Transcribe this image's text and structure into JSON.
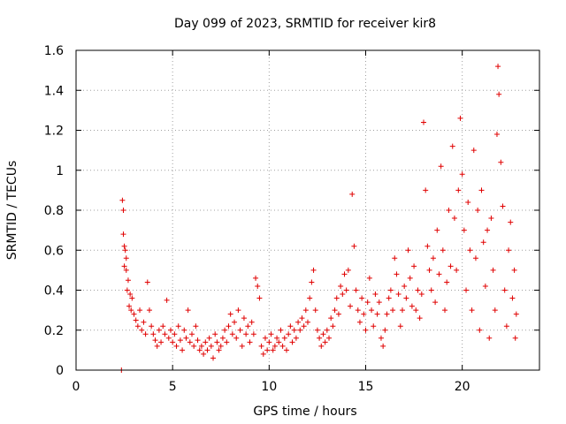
{
  "chart_data": {
    "type": "scatter",
    "title": "Day 099 of 2023, SRMTID for receiver kir8",
    "xlabel": "GPS time / hours",
    "ylabel": "SRMTID / TECUs",
    "xlim": [
      0,
      24
    ],
    "ylim": [
      0,
      1.6
    ],
    "xticks": [
      0,
      5,
      10,
      15,
      20
    ],
    "xtick_labels": [
      "0",
      "5",
      "10",
      "15",
      "20"
    ],
    "yticks": [
      0,
      0.2,
      0.4,
      0.6,
      0.8,
      1.0,
      1.2,
      1.4,
      1.6
    ],
    "ytick_labels": [
      "0",
      "0.2",
      "0.4",
      "0.6",
      "0.8",
      "1",
      "1.2",
      "1.4",
      "1.6"
    ],
    "grid": true,
    "marker": "plus",
    "color": "#e00000",
    "series": [
      {
        "name": "kir8",
        "points": [
          [
            2.35,
            0.0
          ],
          [
            2.4,
            0.85
          ],
          [
            2.45,
            0.8
          ],
          [
            2.45,
            0.68
          ],
          [
            2.5,
            0.62
          ],
          [
            2.55,
            0.6
          ],
          [
            2.6,
            0.56
          ],
          [
            2.5,
            0.52
          ],
          [
            2.6,
            0.5
          ],
          [
            2.7,
            0.45
          ],
          [
            2.65,
            0.4
          ],
          [
            2.8,
            0.38
          ],
          [
            2.9,
            0.36
          ],
          [
            2.75,
            0.32
          ],
          [
            2.85,
            0.3
          ],
          [
            3.0,
            0.28
          ],
          [
            3.1,
            0.25
          ],
          [
            3.2,
            0.22
          ],
          [
            3.3,
            0.3
          ],
          [
            3.4,
            0.2
          ],
          [
            3.5,
            0.24
          ],
          [
            3.6,
            0.18
          ],
          [
            3.7,
            0.44
          ],
          [
            3.8,
            0.3
          ],
          [
            3.9,
            0.22
          ],
          [
            4.0,
            0.18
          ],
          [
            4.1,
            0.15
          ],
          [
            4.2,
            0.12
          ],
          [
            4.3,
            0.2
          ],
          [
            4.4,
            0.14
          ],
          [
            4.5,
            0.22
          ],
          [
            4.6,
            0.18
          ],
          [
            4.7,
            0.35
          ],
          [
            4.8,
            0.16
          ],
          [
            4.9,
            0.2
          ],
          [
            5.0,
            0.14
          ],
          [
            5.1,
            0.18
          ],
          [
            5.2,
            0.12
          ],
          [
            5.3,
            0.22
          ],
          [
            5.4,
            0.15
          ],
          [
            5.5,
            0.1
          ],
          [
            5.6,
            0.2
          ],
          [
            5.7,
            0.16
          ],
          [
            5.8,
            0.3
          ],
          [
            5.9,
            0.14
          ],
          [
            6.0,
            0.18
          ],
          [
            6.1,
            0.12
          ],
          [
            6.2,
            0.22
          ],
          [
            6.3,
            0.15
          ],
          [
            6.4,
            0.1
          ],
          [
            6.5,
            0.12
          ],
          [
            6.6,
            0.08
          ],
          [
            6.7,
            0.14
          ],
          [
            6.8,
            0.1
          ],
          [
            6.9,
            0.16
          ],
          [
            7.0,
            0.12
          ],
          [
            7.1,
            0.06
          ],
          [
            7.2,
            0.18
          ],
          [
            7.3,
            0.14
          ],
          [
            7.4,
            0.1
          ],
          [
            7.5,
            0.12
          ],
          [
            7.6,
            0.16
          ],
          [
            7.7,
            0.2
          ],
          [
            7.8,
            0.14
          ],
          [
            7.9,
            0.22
          ],
          [
            8.0,
            0.28
          ],
          [
            8.1,
            0.18
          ],
          [
            8.2,
            0.24
          ],
          [
            8.3,
            0.16
          ],
          [
            8.4,
            0.3
          ],
          [
            8.5,
            0.2
          ],
          [
            8.6,
            0.12
          ],
          [
            8.7,
            0.26
          ],
          [
            8.8,
            0.18
          ],
          [
            8.9,
            0.22
          ],
          [
            9.0,
            0.14
          ],
          [
            9.1,
            0.24
          ],
          [
            9.2,
            0.18
          ],
          [
            9.3,
            0.46
          ],
          [
            9.4,
            0.42
          ],
          [
            9.5,
            0.36
          ],
          [
            9.6,
            0.12
          ],
          [
            9.7,
            0.08
          ],
          [
            9.8,
            0.16
          ],
          [
            9.9,
            0.1
          ],
          [
            10.0,
            0.14
          ],
          [
            10.1,
            0.18
          ],
          [
            10.2,
            0.1
          ],
          [
            10.3,
            0.12
          ],
          [
            10.4,
            0.16
          ],
          [
            10.5,
            0.14
          ],
          [
            10.6,
            0.2
          ],
          [
            10.7,
            0.12
          ],
          [
            10.8,
            0.16
          ],
          [
            10.9,
            0.1
          ],
          [
            11.0,
            0.18
          ],
          [
            11.1,
            0.22
          ],
          [
            11.2,
            0.14
          ],
          [
            11.3,
            0.2
          ],
          [
            11.4,
            0.16
          ],
          [
            11.5,
            0.24
          ],
          [
            11.6,
            0.2
          ],
          [
            11.7,
            0.26
          ],
          [
            11.8,
            0.22
          ],
          [
            11.9,
            0.3
          ],
          [
            12.0,
            0.24
          ],
          [
            12.1,
            0.36
          ],
          [
            12.2,
            0.44
          ],
          [
            12.3,
            0.5
          ],
          [
            12.4,
            0.3
          ],
          [
            12.5,
            0.2
          ],
          [
            12.6,
            0.16
          ],
          [
            12.7,
            0.12
          ],
          [
            12.8,
            0.18
          ],
          [
            12.9,
            0.14
          ],
          [
            13.0,
            0.2
          ],
          [
            13.1,
            0.16
          ],
          [
            13.2,
            0.26
          ],
          [
            13.3,
            0.22
          ],
          [
            13.4,
            0.3
          ],
          [
            13.5,
            0.36
          ],
          [
            13.6,
            0.28
          ],
          [
            13.7,
            0.42
          ],
          [
            13.8,
            0.38
          ],
          [
            13.9,
            0.48
          ],
          [
            14.0,
            0.4
          ],
          [
            14.1,
            0.5
          ],
          [
            14.2,
            0.32
          ],
          [
            14.3,
            0.88
          ],
          [
            14.4,
            0.62
          ],
          [
            14.5,
            0.4
          ],
          [
            14.6,
            0.3
          ],
          [
            14.7,
            0.24
          ],
          [
            14.8,
            0.36
          ],
          [
            14.9,
            0.28
          ],
          [
            15.0,
            0.2
          ],
          [
            15.1,
            0.34
          ],
          [
            15.2,
            0.46
          ],
          [
            15.3,
            0.3
          ],
          [
            15.4,
            0.22
          ],
          [
            15.5,
            0.38
          ],
          [
            15.6,
            0.28
          ],
          [
            15.7,
            0.34
          ],
          [
            15.8,
            0.16
          ],
          [
            15.9,
            0.12
          ],
          [
            16.0,
            0.2
          ],
          [
            16.1,
            0.28
          ],
          [
            16.2,
            0.36
          ],
          [
            16.3,
            0.4
          ],
          [
            16.4,
            0.3
          ],
          [
            16.5,
            0.56
          ],
          [
            16.6,
            0.48
          ],
          [
            16.7,
            0.38
          ],
          [
            16.8,
            0.22
          ],
          [
            16.9,
            0.3
          ],
          [
            17.0,
            0.42
          ],
          [
            17.1,
            0.36
          ],
          [
            17.2,
            0.6
          ],
          [
            17.3,
            0.46
          ],
          [
            17.4,
            0.32
          ],
          [
            17.5,
            0.52
          ],
          [
            17.6,
            0.3
          ],
          [
            17.7,
            0.4
          ],
          [
            17.8,
            0.26
          ],
          [
            17.9,
            0.38
          ],
          [
            18.0,
            1.24
          ],
          [
            18.1,
            0.9
          ],
          [
            18.2,
            0.62
          ],
          [
            18.3,
            0.5
          ],
          [
            18.4,
            0.4
          ],
          [
            18.5,
            0.56
          ],
          [
            18.6,
            0.34
          ],
          [
            18.7,
            0.7
          ],
          [
            18.8,
            0.48
          ],
          [
            18.9,
            1.02
          ],
          [
            19.0,
            0.6
          ],
          [
            19.1,
            0.3
          ],
          [
            19.2,
            0.44
          ],
          [
            19.3,
            0.8
          ],
          [
            19.4,
            0.52
          ],
          [
            19.5,
            1.12
          ],
          [
            19.6,
            0.76
          ],
          [
            19.7,
            0.5
          ],
          [
            19.8,
            0.9
          ],
          [
            19.9,
            1.26
          ],
          [
            20.0,
            0.98
          ],
          [
            20.1,
            0.7
          ],
          [
            20.2,
            0.4
          ],
          [
            20.3,
            0.84
          ],
          [
            20.4,
            0.6
          ],
          [
            20.5,
            0.3
          ],
          [
            20.6,
            1.1
          ],
          [
            20.7,
            0.56
          ],
          [
            20.8,
            0.8
          ],
          [
            20.9,
            0.2
          ],
          [
            21.0,
            0.9
          ],
          [
            21.1,
            0.64
          ],
          [
            21.2,
            0.42
          ],
          [
            21.3,
            0.7
          ],
          [
            21.4,
            0.16
          ],
          [
            21.5,
            0.76
          ],
          [
            21.6,
            0.5
          ],
          [
            21.7,
            0.3
          ],
          [
            21.8,
            1.18
          ],
          [
            21.85,
            1.52
          ],
          [
            21.9,
            1.38
          ],
          [
            22.0,
            1.04
          ],
          [
            22.1,
            0.82
          ],
          [
            22.2,
            0.4
          ],
          [
            22.3,
            0.22
          ],
          [
            22.4,
            0.6
          ],
          [
            22.5,
            0.74
          ],
          [
            22.6,
            0.36
          ],
          [
            22.7,
            0.5
          ],
          [
            22.75,
            0.16
          ],
          [
            22.8,
            0.28
          ]
        ]
      }
    ]
  }
}
